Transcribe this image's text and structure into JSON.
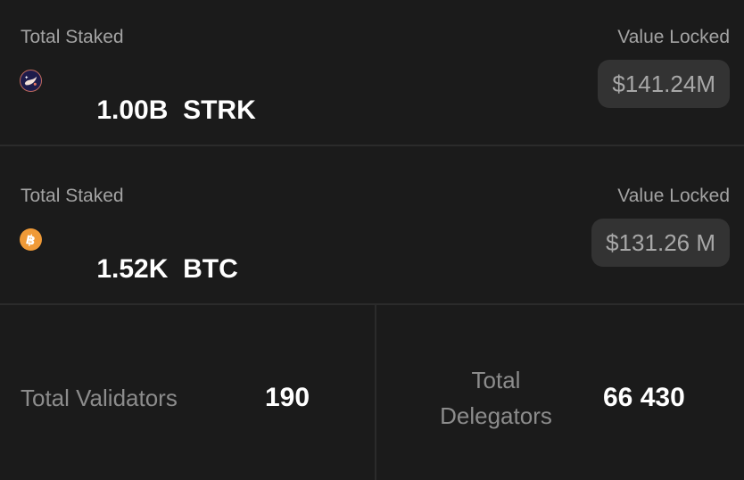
{
  "strk": {
    "label": "Total Staked",
    "amount": "1.00B",
    "token": "STRK",
    "icon": "starknet-icon",
    "value_label": "Value Locked",
    "value": "$141.24M"
  },
  "btc": {
    "label": "Total Staked",
    "amount": "1.52K",
    "token": "BTC",
    "icon": "bitcoin-icon",
    "value_label": "Value Locked",
    "value": "$131.26 M"
  },
  "validators": {
    "label": "Total Validators",
    "value": "190"
  },
  "delegators": {
    "label_line1": "Total",
    "label_line2": "Delegators",
    "value": "66 430"
  },
  "colors": {
    "background": "#1b1b1b",
    "pill": "#333333",
    "bitcoin": "#f09a37",
    "starknet": "#1e1b4b"
  }
}
